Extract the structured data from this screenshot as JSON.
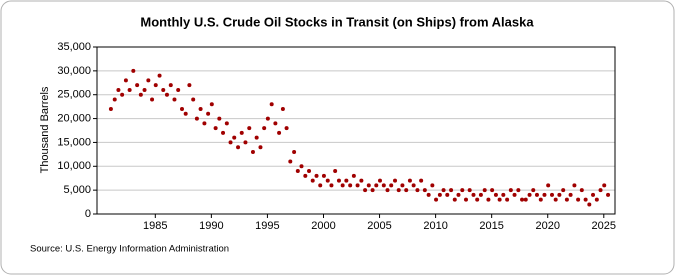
{
  "chart_data": {
    "type": "scatter",
    "title": "Monthly U.S. Crude Oil Stocks in Transit (on Ships) from Alaska",
    "ylabel": "Thousand Barrels",
    "source": "Source: U.S. Energy Information Administration",
    "color": "#a00000",
    "grid": true,
    "xlim": [
      1979.8,
      2026
    ],
    "xticks": [
      1985,
      1990,
      1995,
      2000,
      2005,
      2010,
      2015,
      2020,
      2025
    ],
    "ylim": [
      0,
      35000
    ],
    "yticks": [
      0,
      {
        "value": 5000,
        "label": "5,000"
      },
      {
        "value": 10000,
        "label": "10,000"
      },
      {
        "value": 15000,
        "label": "15,000"
      },
      {
        "value": 20000,
        "label": "20,000"
      },
      {
        "value": 25000,
        "label": "25,000"
      },
      {
        "value": 30000,
        "label": "30,000"
      },
      {
        "value": 35000,
        "label": "35,000"
      }
    ],
    "x": [
      1981.04,
      1981.38,
      1981.71,
      1982.04,
      1982.38,
      1982.71,
      1983.04,
      1983.38,
      1983.71,
      1984.04,
      1984.38,
      1984.71,
      1985.04,
      1985.38,
      1985.71,
      1986.04,
      1986.38,
      1986.71,
      1987.04,
      1987.38,
      1987.71,
      1988.04,
      1988.38,
      1988.71,
      1989.04,
      1989.38,
      1989.71,
      1990.04,
      1990.38,
      1990.71,
      1991.04,
      1991.38,
      1991.71,
      1992.04,
      1992.38,
      1992.71,
      1993.04,
      1993.38,
      1993.71,
      1994.04,
      1994.38,
      1994.71,
      1995.04,
      1995.38,
      1995.71,
      1996.04,
      1996.38,
      1996.71,
      1997.04,
      1997.38,
      1997.71,
      1998.04,
      1998.38,
      1998.71,
      1999.04,
      1999.38,
      1999.71,
      2000.04,
      2000.38,
      2000.71,
      2001.04,
      2001.38,
      2001.71,
      2002.04,
      2002.38,
      2002.71,
      2003.04,
      2003.38,
      2003.71,
      2004.04,
      2004.38,
      2004.71,
      2005.04,
      2005.38,
      2005.71,
      2006.04,
      2006.38,
      2006.71,
      2007.04,
      2007.38,
      2007.71,
      2008.04,
      2008.38,
      2008.71,
      2009.04,
      2009.38,
      2009.71,
      2010.04,
      2010.38,
      2010.71,
      2011.04,
      2011.38,
      2011.71,
      2012.04,
      2012.38,
      2012.71,
      2013.04,
      2013.38,
      2013.71,
      2014.04,
      2014.38,
      2014.71,
      2015.04,
      2015.38,
      2015.71,
      2016.04,
      2016.38,
      2016.71,
      2017.04,
      2017.38,
      2017.71,
      2018.04,
      2018.38,
      2018.71,
      2019.04,
      2019.38,
      2019.71,
      2020.04,
      2020.38,
      2020.71,
      2021.04,
      2021.38,
      2021.71,
      2022.04,
      2022.38,
      2022.71,
      2023.04,
      2023.38,
      2023.71,
      2024.04,
      2024.38,
      2024.71,
      2025.04,
      2025.38
    ],
    "values": [
      22000,
      24000,
      26000,
      25000,
      28000,
      26000,
      30000,
      27000,
      25000,
      26000,
      28000,
      24000,
      27000,
      29000,
      26000,
      25000,
      27000,
      24000,
      26000,
      22000,
      21000,
      27000,
      24000,
      20000,
      22000,
      19000,
      21000,
      23000,
      18000,
      20000,
      17000,
      19000,
      15000,
      16000,
      14000,
      17000,
      15000,
      18000,
      13000,
      16000,
      14000,
      18000,
      20000,
      23000,
      19000,
      17000,
      22000,
      18000,
      11000,
      13000,
      9000,
      10000,
      8000,
      9000,
      7000,
      8000,
      6000,
      8000,
      7000,
      6000,
      9000,
      7000,
      6000,
      7000,
      6000,
      8000,
      6000,
      7000,
      5000,
      6000,
      5000,
      6000,
      7000,
      6000,
      5000,
      6000,
      7000,
      5000,
      6000,
      5000,
      7000,
      6000,
      5000,
      7000,
      5000,
      4000,
      6000,
      3000,
      4000,
      5000,
      4000,
      5000,
      3000,
      4000,
      5000,
      3000,
      5000,
      4000,
      3000,
      4000,
      5000,
      3000,
      5000,
      4000,
      3000,
      4000,
      3000,
      5000,
      4000,
      5000,
      3000,
      3000,
      4000,
      5000,
      4000,
      3000,
      4000,
      6000,
      4000,
      3000,
      4000,
      5000,
      3000,
      4000,
      6000,
      3000,
      5000,
      3000,
      2000,
      4000,
      3000,
      5000,
      6000,
      4000
    ]
  }
}
